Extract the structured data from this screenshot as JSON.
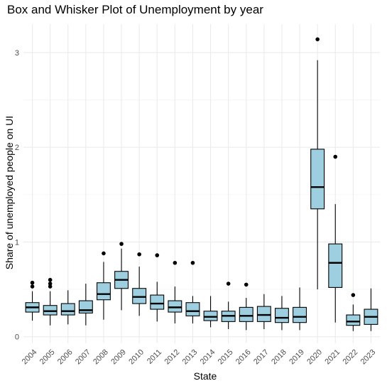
{
  "chart_data": {
    "type": "box",
    "title": "Box and Whisker Plot of Unemployment by year",
    "xlabel": "State",
    "ylabel": "Share of unemployed people on UI",
    "ylim": [
      -0.07,
      3.3
    ],
    "yticks": [
      0,
      1,
      2,
      3
    ],
    "grid": true,
    "box_fill": "#9dcfe0",
    "categories": [
      "2004",
      "2005",
      "2006",
      "2007",
      "2008",
      "2009",
      "2010",
      "2011",
      "2012",
      "2013",
      "2014",
      "2015",
      "2016",
      "2017",
      "2018",
      "2019",
      "2020",
      "2021",
      "2022",
      "2023"
    ],
    "boxes": [
      {
        "year": "2004",
        "whisker_low": 0.17,
        "q1": 0.26,
        "median": 0.31,
        "q3": 0.36,
        "whisker_high": 0.48,
        "outliers": [
          0.53,
          0.57
        ]
      },
      {
        "year": "2005",
        "whisker_low": 0.12,
        "q1": 0.23,
        "median": 0.27,
        "q3": 0.33,
        "whisker_high": 0.48,
        "outliers": [
          0.53,
          0.56,
          0.6
        ]
      },
      {
        "year": "2006",
        "whisker_low": 0.13,
        "q1": 0.23,
        "median": 0.27,
        "q3": 0.35,
        "whisker_high": 0.49,
        "outliers": []
      },
      {
        "year": "2007",
        "whisker_low": 0.12,
        "q1": 0.25,
        "median": 0.28,
        "q3": 0.38,
        "whisker_high": 0.56,
        "outliers": []
      },
      {
        "year": "2008",
        "whisker_low": 0.18,
        "q1": 0.39,
        "median": 0.45,
        "q3": 0.57,
        "whisker_high": 0.79,
        "outliers": [
          0.88
        ]
      },
      {
        "year": "2009",
        "whisker_low": 0.28,
        "q1": 0.51,
        "median": 0.6,
        "q3": 0.69,
        "whisker_high": 0.93,
        "outliers": [
          0.98
        ]
      },
      {
        "year": "2010",
        "whisker_low": 0.22,
        "q1": 0.35,
        "median": 0.42,
        "q3": 0.51,
        "whisker_high": 0.74,
        "outliers": [
          0.87
        ]
      },
      {
        "year": "2011",
        "whisker_low": 0.16,
        "q1": 0.29,
        "median": 0.35,
        "q3": 0.44,
        "whisker_high": 0.58,
        "outliers": [
          0.86
        ]
      },
      {
        "year": "2012",
        "whisker_low": 0.14,
        "q1": 0.26,
        "median": 0.31,
        "q3": 0.38,
        "whisker_high": 0.53,
        "outliers": [
          0.78
        ]
      },
      {
        "year": "2013",
        "whisker_low": 0.14,
        "q1": 0.22,
        "median": 0.27,
        "q3": 0.36,
        "whisker_high": 0.43,
        "outliers": [
          0.78
        ]
      },
      {
        "year": "2014",
        "whisker_low": 0.1,
        "q1": 0.17,
        "median": 0.21,
        "q3": 0.27,
        "whisker_high": 0.43,
        "outliers": []
      },
      {
        "year": "2015",
        "whisker_low": 0.08,
        "q1": 0.16,
        "median": 0.22,
        "q3": 0.27,
        "whisker_high": 0.37,
        "outliers": [
          0.56
        ]
      },
      {
        "year": "2016",
        "whisker_low": 0.07,
        "q1": 0.16,
        "median": 0.22,
        "q3": 0.31,
        "whisker_high": 0.41,
        "outliers": [
          0.55
        ]
      },
      {
        "year": "2017",
        "whisker_low": 0.08,
        "q1": 0.16,
        "median": 0.23,
        "q3": 0.32,
        "whisker_high": 0.45,
        "outliers": []
      },
      {
        "year": "2018",
        "whisker_low": 0.07,
        "q1": 0.15,
        "median": 0.2,
        "q3": 0.3,
        "whisker_high": 0.43,
        "outliers": []
      },
      {
        "year": "2019",
        "whisker_low": 0.07,
        "q1": 0.15,
        "median": 0.21,
        "q3": 0.31,
        "whisker_high": 0.52,
        "outliers": []
      },
      {
        "year": "2020",
        "whisker_low": 0.5,
        "q1": 1.35,
        "median": 1.58,
        "q3": 1.98,
        "whisker_high": 2.92,
        "outliers": [
          3.14
        ]
      },
      {
        "year": "2021",
        "whisker_low": 0.15,
        "q1": 0.52,
        "median": 0.78,
        "q3": 0.98,
        "whisker_high": 1.4,
        "outliers": [
          1.9
        ]
      },
      {
        "year": "2022",
        "whisker_low": 0.06,
        "q1": 0.12,
        "median": 0.16,
        "q3": 0.23,
        "whisker_high": 0.34,
        "outliers": [
          0.44
        ]
      },
      {
        "year": "2023",
        "whisker_low": 0.06,
        "q1": 0.13,
        "median": 0.21,
        "q3": 0.29,
        "whisker_high": 0.51,
        "outliers": []
      }
    ]
  }
}
